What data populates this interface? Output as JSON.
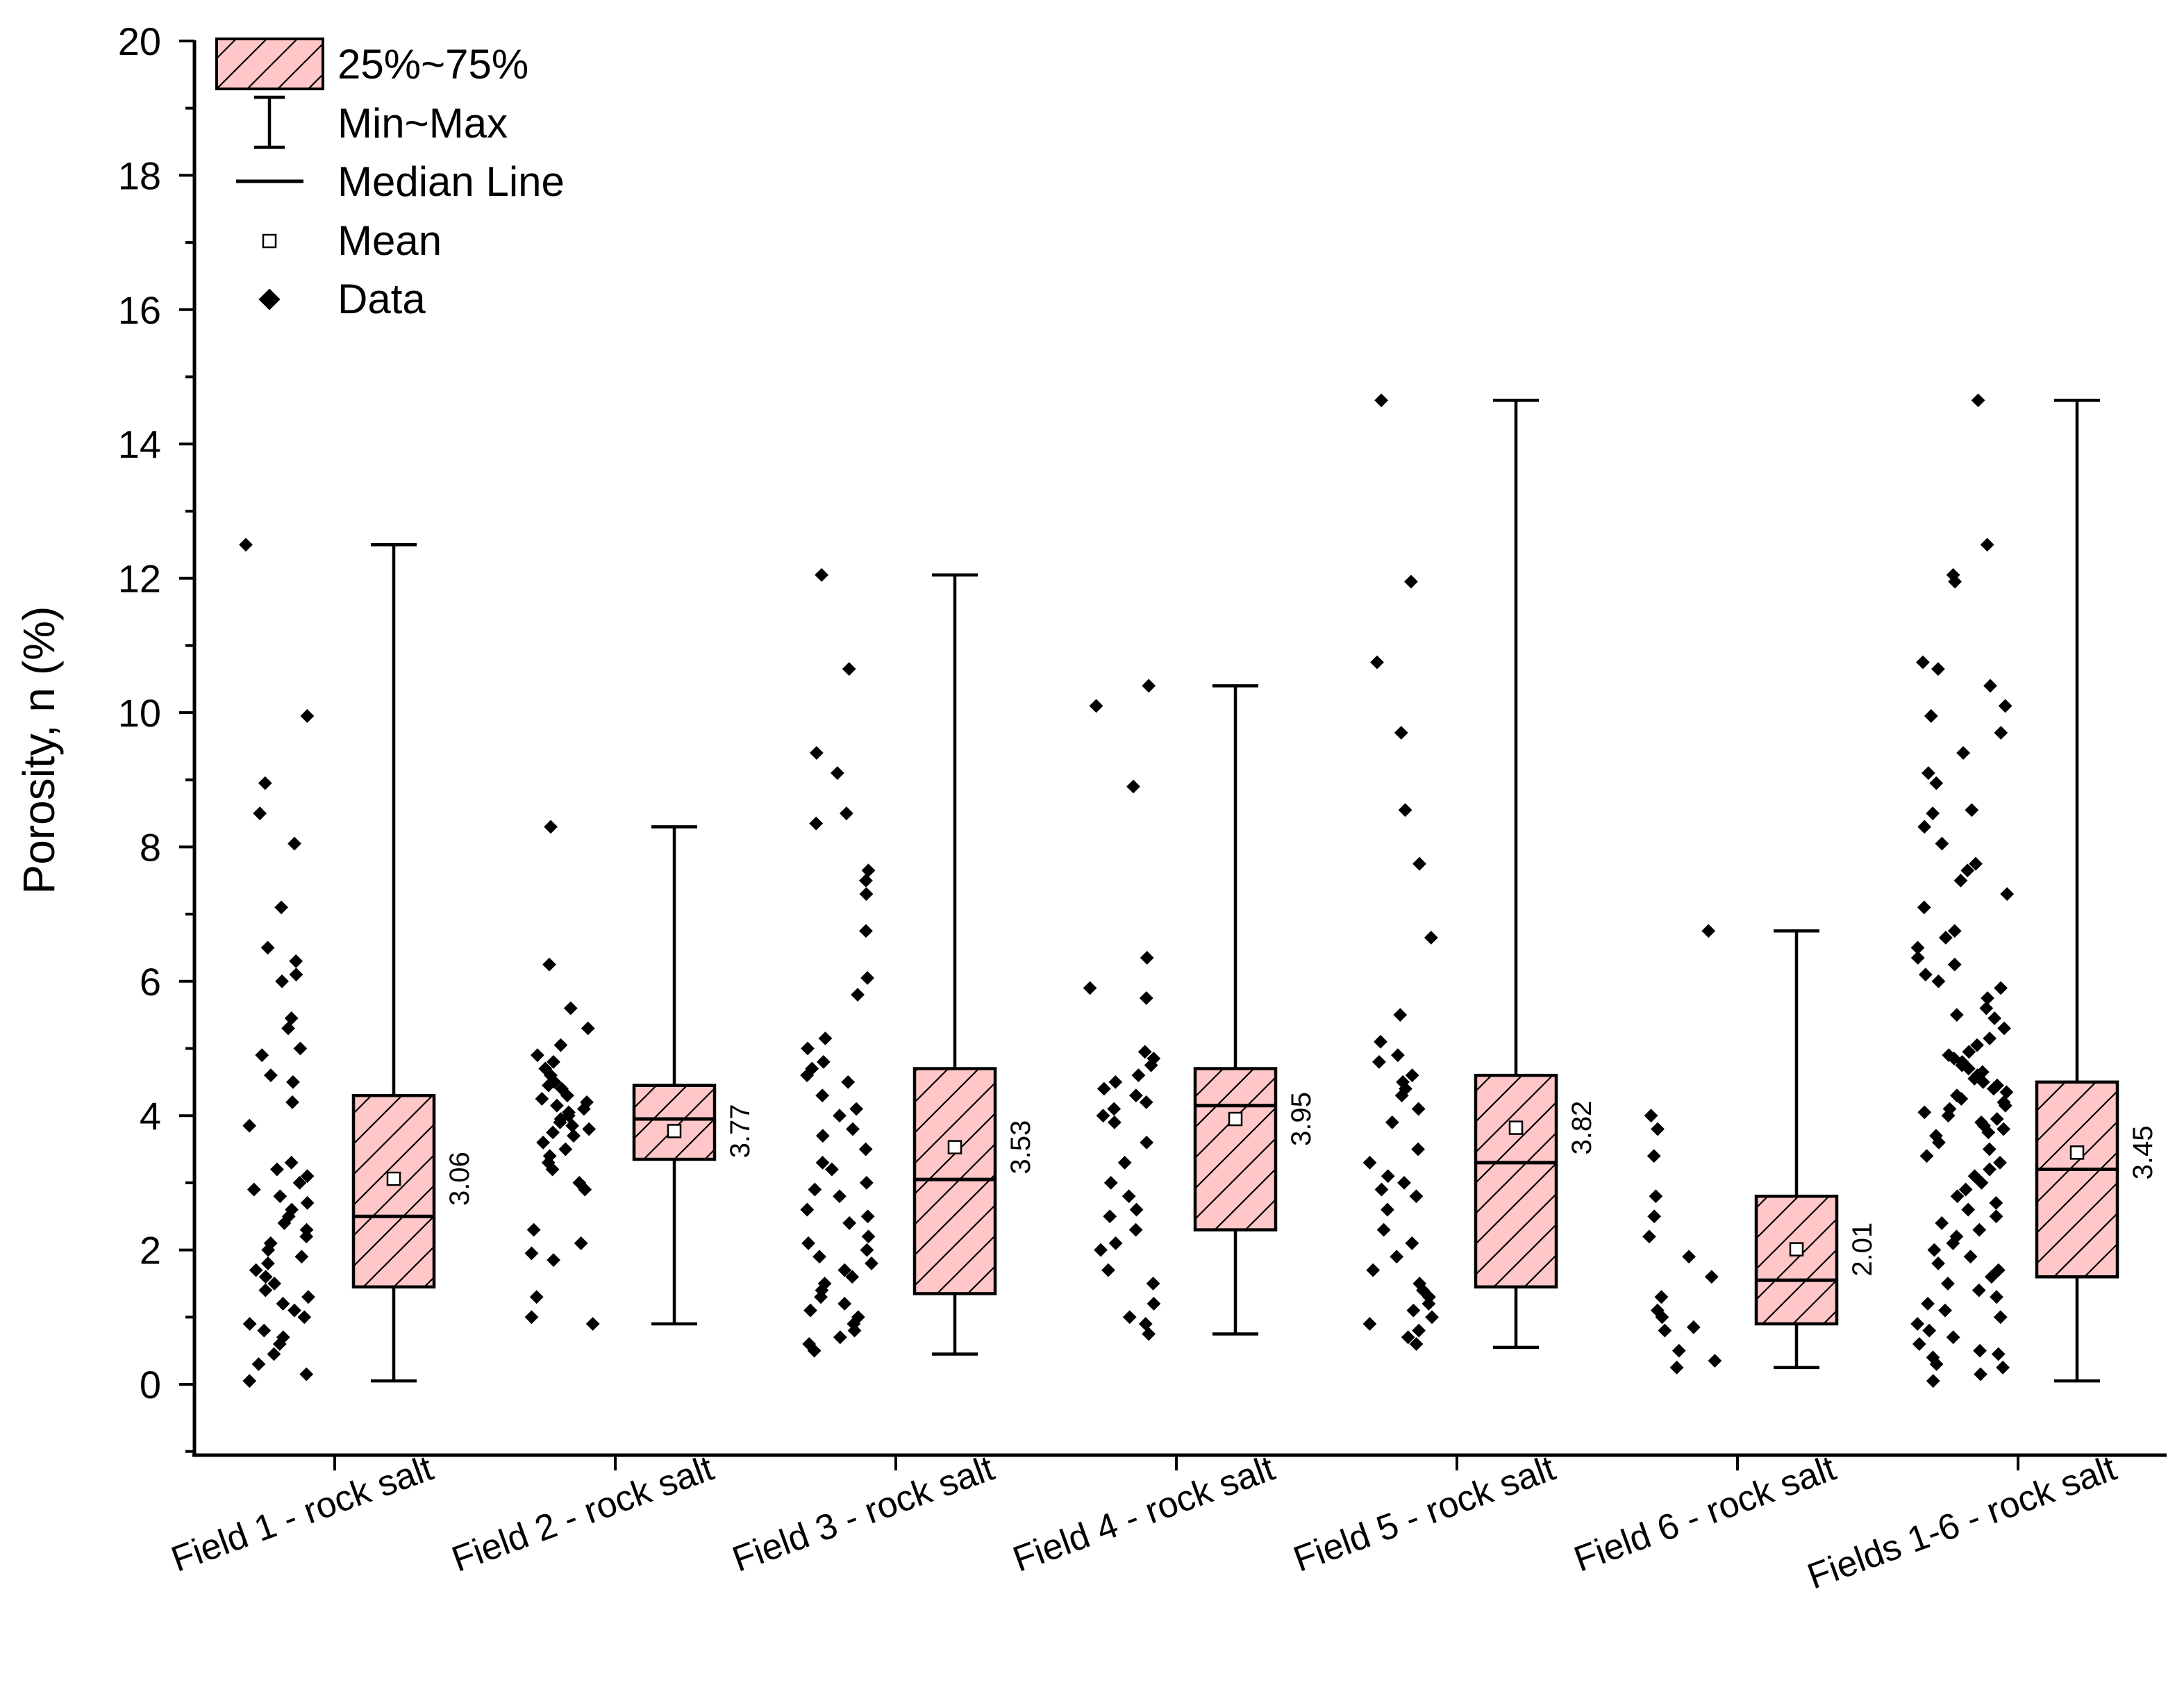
{
  "chart_data": {
    "type": "box",
    "title": "",
    "xlabel": "",
    "ylabel": "Porosity, n (%)",
    "ylim": [
      -1,
      20
    ],
    "yticks": [
      0,
      2,
      4,
      6,
      8,
      10,
      12,
      14,
      16,
      18,
      20
    ],
    "legend": {
      "position": "top-left",
      "items": [
        {
          "symbol": "box",
          "label": "25%~75%"
        },
        {
          "symbol": "whisker",
          "label": "Min~Max"
        },
        {
          "symbol": "median",
          "label": "Median Line"
        },
        {
          "symbol": "mean",
          "label": "Mean"
        },
        {
          "symbol": "data",
          "label": "Data"
        }
      ]
    },
    "colors": {
      "box_fill": "#ffc7c7",
      "stroke": "#000000"
    },
    "categories": [
      "Field 1 - rock salt",
      "Field 2 - rock salt",
      "Field 3 - rock salt",
      "Field 4 - rock salt",
      "Field 5 - rock salt",
      "Field 6 - rock salt",
      "Fields 1-6 - rock salt"
    ],
    "boxes": [
      {
        "q1": 1.45,
        "median": 2.5,
        "q3": 4.3,
        "min": 0.05,
        "max": 12.5,
        "mean": 3.06,
        "mean_label": "3.06"
      },
      {
        "q1": 3.35,
        "median": 3.95,
        "q3": 4.45,
        "min": 0.9,
        "max": 8.3,
        "mean": 3.77,
        "mean_label": "3.77"
      },
      {
        "q1": 1.35,
        "median": 3.05,
        "q3": 4.7,
        "min": 0.45,
        "max": 12.05,
        "mean": 3.53,
        "mean_label": "3.53"
      },
      {
        "q1": 2.3,
        "median": 4.15,
        "q3": 4.7,
        "min": 0.75,
        "max": 10.4,
        "mean": 3.95,
        "mean_label": "3.95"
      },
      {
        "q1": 1.45,
        "median": 3.3,
        "q3": 4.6,
        "min": 0.55,
        "max": 14.65,
        "mean": 3.82,
        "mean_label": "3.82"
      },
      {
        "q1": 0.9,
        "median": 1.55,
        "q3": 2.8,
        "min": 0.25,
        "max": 6.75,
        "mean": 2.01,
        "mean_label": "2.01"
      },
      {
        "q1": 1.6,
        "median": 3.2,
        "q3": 4.5,
        "min": 0.05,
        "max": 14.65,
        "mean": 3.45,
        "mean_label": "3.45"
      }
    ],
    "data_points": [
      [
        12.5,
        9.95,
        8.95,
        8.5,
        8.05,
        7.1,
        6.5,
        6.3,
        6.1,
        6.0,
        5.45,
        5.3,
        5.0,
        4.9,
        4.6,
        4.5,
        4.2,
        3.85,
        3.3,
        3.2,
        3.1,
        3.0,
        2.9,
        2.8,
        2.7,
        2.6,
        2.5,
        2.4,
        2.3,
        2.2,
        2.1,
        2.0,
        1.9,
        1.8,
        1.7,
        1.6,
        1.5,
        1.4,
        1.3,
        1.2,
        1.1,
        1.0,
        0.9,
        0.8,
        0.7,
        0.6,
        0.45,
        0.3,
        0.15,
        0.05
      ],
      [
        8.3,
        6.25,
        5.6,
        5.3,
        5.05,
        4.9,
        4.8,
        4.7,
        4.6,
        4.5,
        4.45,
        4.4,
        4.3,
        4.25,
        4.2,
        4.15,
        4.1,
        4.05,
        4.0,
        3.95,
        3.9,
        3.85,
        3.8,
        3.75,
        3.7,
        3.6,
        3.5,
        3.4,
        3.3,
        3.2,
        3.0,
        2.9,
        2.3,
        2.1,
        1.95,
        1.85,
        1.3,
        1.0,
        0.9
      ],
      [
        12.05,
        10.65,
        9.4,
        9.1,
        8.5,
        8.35,
        7.65,
        7.5,
        7.3,
        6.75,
        6.05,
        5.8,
        5.15,
        5.0,
        4.8,
        4.7,
        4.6,
        4.5,
        4.3,
        4.1,
        4.0,
        3.8,
        3.7,
        3.5,
        3.3,
        3.2,
        3.0,
        2.9,
        2.8,
        2.6,
        2.5,
        2.4,
        2.2,
        2.1,
        2.0,
        1.9,
        1.8,
        1.7,
        1.6,
        1.5,
        1.4,
        1.3,
        1.2,
        1.1,
        1.0,
        0.9,
        0.8,
        0.7,
        0.6,
        0.5
      ],
      [
        10.4,
        10.1,
        8.9,
        6.35,
        5.9,
        5.75,
        4.95,
        4.85,
        4.75,
        4.6,
        4.5,
        4.4,
        4.3,
        4.2,
        4.1,
        4.0,
        3.9,
        3.6,
        3.3,
        3.0,
        2.8,
        2.6,
        2.5,
        2.3,
        2.1,
        2.0,
        1.7,
        1.5,
        1.2,
        1.0,
        0.9,
        0.75
      ],
      [
        14.65,
        11.95,
        10.75,
        9.7,
        8.55,
        7.75,
        6.65,
        5.5,
        5.1,
        4.9,
        4.8,
        4.6,
        4.5,
        4.4,
        4.3,
        4.1,
        3.9,
        3.5,
        3.3,
        3.1,
        3.0,
        2.9,
        2.8,
        2.6,
        2.3,
        2.1,
        1.9,
        1.7,
        1.5,
        1.4,
        1.3,
        1.2,
        1.1,
        1.0,
        0.9,
        0.8,
        0.7,
        0.6
      ],
      [
        6.75,
        4.0,
        3.8,
        3.4,
        2.8,
        2.5,
        2.2,
        1.9,
        1.6,
        1.3,
        1.1,
        1.0,
        0.85,
        0.8,
        0.5,
        0.35,
        0.25
      ],
      [
        14.65,
        12.5,
        12.05,
        11.95,
        10.75,
        10.65,
        10.4,
        10.1,
        9.95,
        9.7,
        9.4,
        9.1,
        8.95,
        8.55,
        8.5,
        8.3,
        8.05,
        7.75,
        7.65,
        7.5,
        7.3,
        7.1,
        6.75,
        6.65,
        6.5,
        6.35,
        6.25,
        6.1,
        6.0,
        5.9,
        5.75,
        5.6,
        5.5,
        5.45,
        5.3,
        5.15,
        5.05,
        4.95,
        4.9,
        4.85,
        4.8,
        4.75,
        4.7,
        4.65,
        4.6,
        4.55,
        4.5,
        4.45,
        4.4,
        4.35,
        4.3,
        4.25,
        4.2,
        4.15,
        4.1,
        4.05,
        4.0,
        3.95,
        3.9,
        3.85,
        3.8,
        3.75,
        3.7,
        3.6,
        3.5,
        3.4,
        3.3,
        3.2,
        3.1,
        3.0,
        2.9,
        2.8,
        2.7,
        2.6,
        2.5,
        2.4,
        2.3,
        2.2,
        2.1,
        2.0,
        1.9,
        1.8,
        1.7,
        1.6,
        1.5,
        1.4,
        1.3,
        1.2,
        1.1,
        1.0,
        0.9,
        0.8,
        0.7,
        0.6,
        0.5,
        0.45,
        0.4,
        0.3,
        0.25,
        0.15,
        0.05
      ]
    ]
  }
}
